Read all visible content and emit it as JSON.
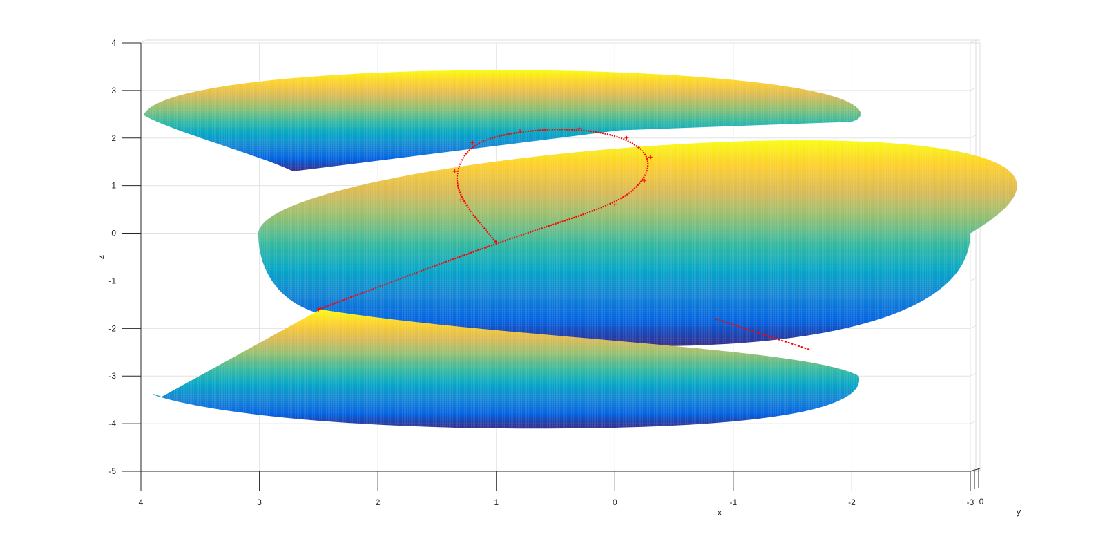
{
  "chart_data": {
    "type": "surface3d",
    "title": "",
    "xlabel": "x",
    "ylabel": "y",
    "zlabel": "z",
    "xlim": [
      -3,
      4
    ],
    "zlim": [
      -5,
      4
    ],
    "x_ticks": [
      "4",
      "3",
      "2",
      "1",
      "0",
      "-1",
      "-2",
      "-3"
    ],
    "y_ticks": [
      "0"
    ],
    "z_ticks": [
      "4",
      "3",
      "2",
      "1",
      "0",
      "-1",
      "-2",
      "-3",
      "-4",
      "-5"
    ],
    "grid": true,
    "colormap": "parula",
    "colormap_stops": [
      "#352A87",
      "#0363E1",
      "#1485D4",
      "#06A7C6",
      "#38B99E",
      "#92BF73",
      "#D9BA56",
      "#FCCE2E",
      "#F9FB0E"
    ],
    "surface": {
      "description_shape": "helicoid",
      "center_x": 1,
      "radius": 3,
      "z_bottom": -3,
      "z_top": 2.6,
      "z_min": -4.1,
      "z_max": 3.6
    },
    "curve": {
      "color": "#FF0000",
      "marker": "+",
      "points": [
        {
          "x": 2.5,
          "z": -1.6
        },
        {
          "x": 1.0,
          "z": -0.2
        },
        {
          "x": 0.0,
          "z": 0.6
        },
        {
          "x": -0.25,
          "z": 1.1
        },
        {
          "x": -0.3,
          "z": 1.6
        },
        {
          "x": -0.1,
          "z": 2.0
        },
        {
          "x": 0.3,
          "z": 2.2
        },
        {
          "x": 0.8,
          "z": 2.15
        },
        {
          "x": 1.2,
          "z": 1.9
        },
        {
          "x": 1.35,
          "z": 1.3
        },
        {
          "x": 1.3,
          "z": 0.7
        },
        {
          "x": 1.0,
          "z": -0.2
        }
      ],
      "tail_segment": [
        {
          "x": -0.85,
          "z": -1.8
        },
        {
          "x": -1.65,
          "z": -2.45
        }
      ]
    }
  }
}
